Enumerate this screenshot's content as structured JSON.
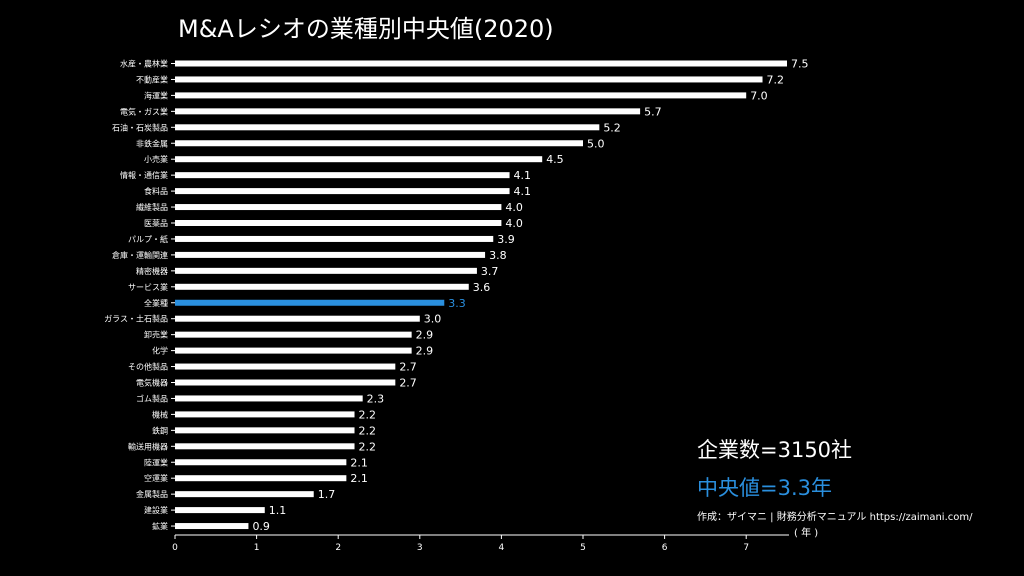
{
  "chart_data": {
    "type": "bar",
    "orientation": "horizontal",
    "title": "M&Aレシオの業種別中央値(2020)",
    "categories": [
      "水産・農林業",
      "不動産業",
      "海運業",
      "電気・ガス業",
      "石油・石炭製品",
      "非鉄金属",
      "小売業",
      "情報・通信業",
      "食料品",
      "繊維製品",
      "医薬品",
      "パルプ・紙",
      "倉庫・運輸関連",
      "精密機器",
      "サービス業",
      "全業種",
      "ガラス・土石製品",
      "卸売業",
      "化学",
      "その他製品",
      "電気機器",
      "ゴム製品",
      "機械",
      "鉄鋼",
      "輸送用機器",
      "陸運業",
      "空運業",
      "金属製品",
      "建設業",
      "鉱業"
    ],
    "values": [
      7.5,
      7.2,
      7.0,
      5.7,
      5.2,
      5.0,
      4.5,
      4.1,
      4.1,
      4.0,
      4.0,
      3.9,
      3.8,
      3.7,
      3.6,
      3.3,
      3.0,
      2.9,
      2.9,
      2.7,
      2.7,
      2.3,
      2.2,
      2.2,
      2.2,
      2.1,
      2.1,
      1.7,
      1.1,
      0.9
    ],
    "value_labels": [
      "7.5",
      "7.2",
      "7.0",
      "5.7",
      "5.2",
      "5.0",
      "4.5",
      "4.1",
      "4.1",
      "4.0",
      "4.0",
      "3.9",
      "3.8",
      "3.7",
      "3.6",
      "3.3",
      "3.0",
      "2.9",
      "2.9",
      "2.7",
      "2.7",
      "2.3",
      "2.2",
      "2.2",
      "2.2",
      "2.1",
      "2.1",
      "1.7",
      "1.1",
      "0.9"
    ],
    "highlight_category": "全業種",
    "xlim": [
      0,
      7.5
    ],
    "xticks": [
      0,
      1,
      2,
      3,
      4,
      5,
      6,
      7
    ],
    "grid": false,
    "legend": "none",
    "colors": {
      "background": "#000000",
      "bar": "#ffffff",
      "highlight": "#2a8fde",
      "text": "#ffffff"
    }
  },
  "annotations": {
    "company_count": "企業数=3150社",
    "median": "中央値=3.3年",
    "credit": "作成：ザイマニ | 財務分析マニュアル https://zaimani.com/",
    "unit": "( 年 )"
  }
}
